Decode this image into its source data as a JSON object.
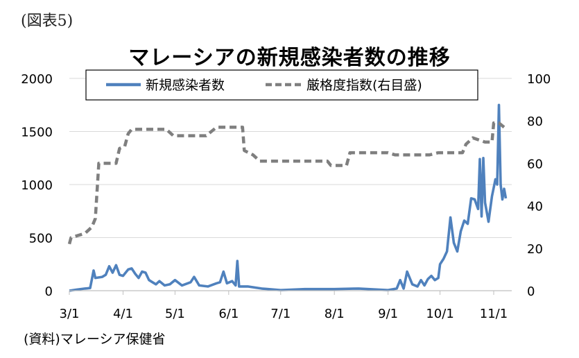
{
  "figure_label": "(図表5)",
  "source_note": "(資料)マレーシア保健省",
  "chart_data": {
    "type": "line",
    "title": "マレーシアの新規感染者数の推移",
    "xlabel": "",
    "ylabel": "",
    "x_tick_labels": [
      "3/1",
      "4/1",
      "5/1",
      "6/1",
      "7/1",
      "8/1",
      "9/1",
      "10/1",
      "11/1"
    ],
    "left_axis": {
      "ylim": [
        0,
        2000
      ],
      "ticks": [
        "0",
        "500",
        "1000",
        "1500",
        "2000"
      ]
    },
    "right_axis": {
      "ylim": [
        0,
        100
      ],
      "ticks": [
        "0",
        "20",
        "40",
        "60",
        "80",
        "100"
      ]
    },
    "grid": "horizontal",
    "legend_position": "top",
    "series": [
      {
        "name": "新規感染者数",
        "axis": "left",
        "style": "solid",
        "color": "#4F81BD",
        "points": [
          [
            "3/1",
            0
          ],
          [
            "3/5",
            10
          ],
          [
            "3/10",
            20
          ],
          [
            "3/13",
            25
          ],
          [
            "3/15",
            190
          ],
          [
            "3/16",
            120
          ],
          [
            "3/20",
            130
          ],
          [
            "3/22",
            150
          ],
          [
            "3/24",
            230
          ],
          [
            "3/26",
            170
          ],
          [
            "3/28",
            240
          ],
          [
            "3/30",
            150
          ],
          [
            "4/1",
            140
          ],
          [
            "4/4",
            200
          ],
          [
            "4/6",
            210
          ],
          [
            "4/8",
            160
          ],
          [
            "4/10",
            120
          ],
          [
            "4/12",
            180
          ],
          [
            "4/14",
            170
          ],
          [
            "4/16",
            100
          ],
          [
            "4/18",
            80
          ],
          [
            "4/20",
            60
          ],
          [
            "4/22",
            90
          ],
          [
            "4/25",
            50
          ],
          [
            "4/28",
            60
          ],
          [
            "5/1",
            100
          ],
          [
            "5/5",
            50
          ],
          [
            "5/10",
            80
          ],
          [
            "5/12",
            130
          ],
          [
            "5/15",
            50
          ],
          [
            "5/20",
            40
          ],
          [
            "5/25",
            70
          ],
          [
            "5/27",
            80
          ],
          [
            "5/29",
            180
          ],
          [
            "5/31",
            70
          ],
          [
            "6/3",
            90
          ],
          [
            "6/5",
            50
          ],
          [
            "6/6",
            280
          ],
          [
            "6/7",
            40
          ],
          [
            "6/12",
            40
          ],
          [
            "6/20",
            20
          ],
          [
            "7/1",
            5
          ],
          [
            "7/15",
            15
          ],
          [
            "8/1",
            15
          ],
          [
            "8/15",
            20
          ],
          [
            "9/1",
            5
          ],
          [
            "9/6",
            20
          ],
          [
            "9/8",
            100
          ],
          [
            "9/10",
            20
          ],
          [
            "9/12",
            180
          ],
          [
            "9/15",
            60
          ],
          [
            "9/18",
            40
          ],
          [
            "9/20",
            100
          ],
          [
            "9/22",
            50
          ],
          [
            "9/24",
            110
          ],
          [
            "9/26",
            140
          ],
          [
            "9/28",
            100
          ],
          [
            "9/30",
            120
          ],
          [
            "10/1",
            250
          ],
          [
            "10/3",
            300
          ],
          [
            "10/5",
            370
          ],
          [
            "10/7",
            690
          ],
          [
            "10/9",
            450
          ],
          [
            "10/11",
            370
          ],
          [
            "10/13",
            560
          ],
          [
            "10/15",
            660
          ],
          [
            "10/17",
            630
          ],
          [
            "10/19",
            870
          ],
          [
            "10/21",
            860
          ],
          [
            "10/23",
            770
          ],
          [
            "10/24",
            1240
          ],
          [
            "10/25",
            700
          ],
          [
            "10/26",
            1250
          ],
          [
            "10/27",
            830
          ],
          [
            "10/29",
            650
          ],
          [
            "10/31",
            890
          ],
          [
            "11/2",
            1050
          ],
          [
            "11/3",
            1000
          ],
          [
            "11/4",
            1750
          ],
          [
            "11/5",
            1000
          ],
          [
            "11/6",
            860
          ],
          [
            "11/7",
            960
          ],
          [
            "11/8",
            870
          ]
        ]
      },
      {
        "name": "厳格度指数(右目盛)",
        "axis": "right",
        "style": "dashed",
        "color": "#7F7F7F",
        "points": [
          [
            "3/1",
            22
          ],
          [
            "3/2",
            25
          ],
          [
            "3/6",
            26
          ],
          [
            "3/10",
            27
          ],
          [
            "3/14",
            30
          ],
          [
            "3/16",
            34
          ],
          [
            "3/18",
            60
          ],
          [
            "3/28",
            60
          ],
          [
            "3/30",
            67
          ],
          [
            "4/2",
            68
          ],
          [
            "4/4",
            74
          ],
          [
            "4/6",
            76
          ],
          [
            "4/26",
            76
          ],
          [
            "4/30",
            73
          ],
          [
            "5/19",
            73
          ],
          [
            "5/25",
            77
          ],
          [
            "6/9",
            77
          ],
          [
            "6/10",
            66
          ],
          [
            "6/15",
            64
          ],
          [
            "6/19",
            61
          ],
          [
            "7/28",
            61
          ],
          [
            "7/30",
            59
          ],
          [
            "8/8",
            59
          ],
          [
            "8/10",
            65
          ],
          [
            "9/1",
            65
          ],
          [
            "9/5",
            64
          ],
          [
            "9/25",
            64
          ],
          [
            "9/30",
            65
          ],
          [
            "10/14",
            65
          ],
          [
            "10/16",
            69
          ],
          [
            "10/20",
            72
          ],
          [
            "10/27",
            70
          ],
          [
            "10/31",
            70
          ],
          [
            "11/1",
            79
          ],
          [
            "11/4",
            79
          ],
          [
            "11/7",
            77
          ]
        ]
      }
    ]
  }
}
